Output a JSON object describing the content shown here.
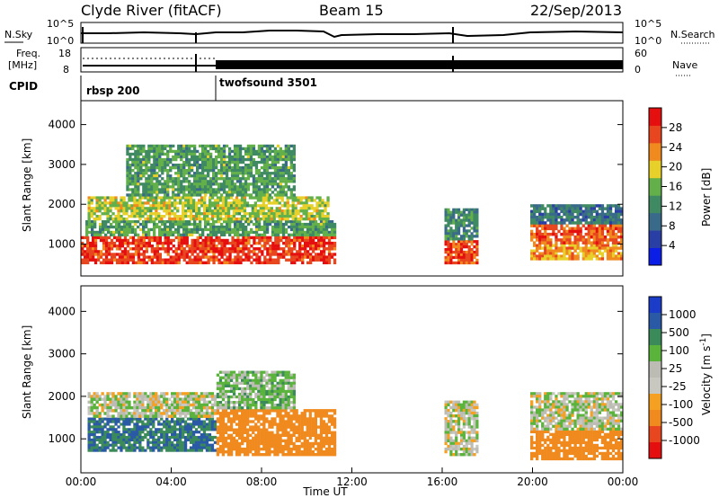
{
  "header": {
    "station": "Clyde River (fitACF)",
    "beam": "Beam 15",
    "date": "22/Sep/2013"
  },
  "noise_panel": {
    "left_label": "N.Sky",
    "right_label": "N.Search",
    "left_ticks": [
      "10^5",
      "10^0"
    ],
    "right_ticks": [
      "10^5",
      "10^0"
    ]
  },
  "freq_panel": {
    "left_label_1": "Freq.",
    "left_label_2": "[MHz]",
    "right_label": "Nave",
    "left_ticks": [
      "18",
      "8"
    ],
    "right_ticks": [
      "60",
      "0"
    ]
  },
  "cpid_panel": {
    "label": "CPID",
    "modes": [
      {
        "name": "rbsp 200",
        "start_hour": 0
      },
      {
        "name": "twofsound 3501",
        "start_hour": 6
      }
    ]
  },
  "colors": {
    "power_scale": [
      "#0a1ee6",
      "#2a3fa6",
      "#3a6a8a",
      "#3f8a63",
      "#63b04a",
      "#e8d02a",
      "#f08a1e",
      "#e8461e",
      "#e60f0f"
    ],
    "velocity_scale": [
      "#e60f0f",
      "#e8461e",
      "#f08a1e",
      "#f5a020",
      "#c8c8c0",
      "#bcbcb4",
      "#5ab43c",
      "#3a8a5a",
      "#2a5aa6",
      "#1a3cc8"
    ]
  },
  "chart_data": [
    {
      "type": "heatmap",
      "name": "power",
      "title": "",
      "xlabel": "",
      "ylabel": "Slant Range [km]",
      "x_range_hours": [
        0,
        24
      ],
      "ylim": [
        200,
        4600
      ],
      "y_ticks": [
        1000,
        2000,
        3000,
        4000
      ],
      "colorbar": {
        "label": "Power [dB]",
        "ticks": [
          "4",
          "8",
          "12",
          "16",
          "20",
          "24",
          "28"
        ],
        "range": [
          0,
          32
        ]
      },
      "blocks": [
        {
          "t0": 0.0,
          "t1": 11.3,
          "r0": 500,
          "r1": 1200,
          "power": 28
        },
        {
          "t0": 0.2,
          "t1": 11.3,
          "r0": 1200,
          "r1": 1600,
          "power": 14
        },
        {
          "t0": 0.3,
          "t1": 11.0,
          "r0": 1600,
          "r1": 2200,
          "power": 18
        },
        {
          "t0": 2.0,
          "t1": 9.5,
          "r0": 2200,
          "r1": 3500,
          "power": 14
        },
        {
          "t0": 16.1,
          "t1": 17.6,
          "r0": 500,
          "r1": 1100,
          "power": 26
        },
        {
          "t0": 16.1,
          "t1": 17.6,
          "r0": 1100,
          "r1": 1900,
          "power": 12
        },
        {
          "t0": 19.9,
          "t1": 24.0,
          "r0": 600,
          "r1": 1000,
          "power": 22
        },
        {
          "t0": 19.9,
          "t1": 24.0,
          "r0": 1000,
          "r1": 1500,
          "power": 26
        },
        {
          "t0": 19.9,
          "t1": 24.0,
          "r0": 1500,
          "r1": 2000,
          "power": 10
        }
      ]
    },
    {
      "type": "heatmap",
      "name": "velocity",
      "title": "",
      "xlabel": "Time UT",
      "ylabel": "Slant Range [km]",
      "x_range_hours": [
        0,
        24
      ],
      "x_ticks": [
        "00:00",
        "04:00",
        "08:00",
        "12:00",
        "16:00",
        "20:00",
        "00:00"
      ],
      "ylim": [
        200,
        4600
      ],
      "y_ticks": [
        1000,
        2000,
        3000,
        4000
      ],
      "colorbar": {
        "label": "Velocity [m s^-1]",
        "ticks": [
          "1000",
          "500",
          "100",
          "25",
          "-25",
          "-100",
          "-500",
          "-1000"
        ]
      },
      "blocks": [
        {
          "t0": 0.3,
          "t1": 6.0,
          "r0": 700,
          "r1": 1500,
          "velocity": 300
        },
        {
          "t0": 0.3,
          "t1": 6.0,
          "r0": 1500,
          "r1": 2100,
          "velocity": 0
        },
        {
          "t0": 6.0,
          "t1": 11.3,
          "r0": 600,
          "r1": 1700,
          "velocity": -200
        },
        {
          "t0": 6.0,
          "t1": 9.5,
          "r0": 1700,
          "r1": 2600,
          "velocity": 50
        },
        {
          "t0": 16.1,
          "t1": 17.6,
          "r0": 600,
          "r1": 1900,
          "velocity": 0
        },
        {
          "t0": 19.9,
          "t1": 24.0,
          "r0": 500,
          "r1": 1200,
          "velocity": -200
        },
        {
          "t0": 19.9,
          "t1": 24.0,
          "r0": 1200,
          "r1": 2100,
          "velocity": 0
        }
      ]
    }
  ]
}
